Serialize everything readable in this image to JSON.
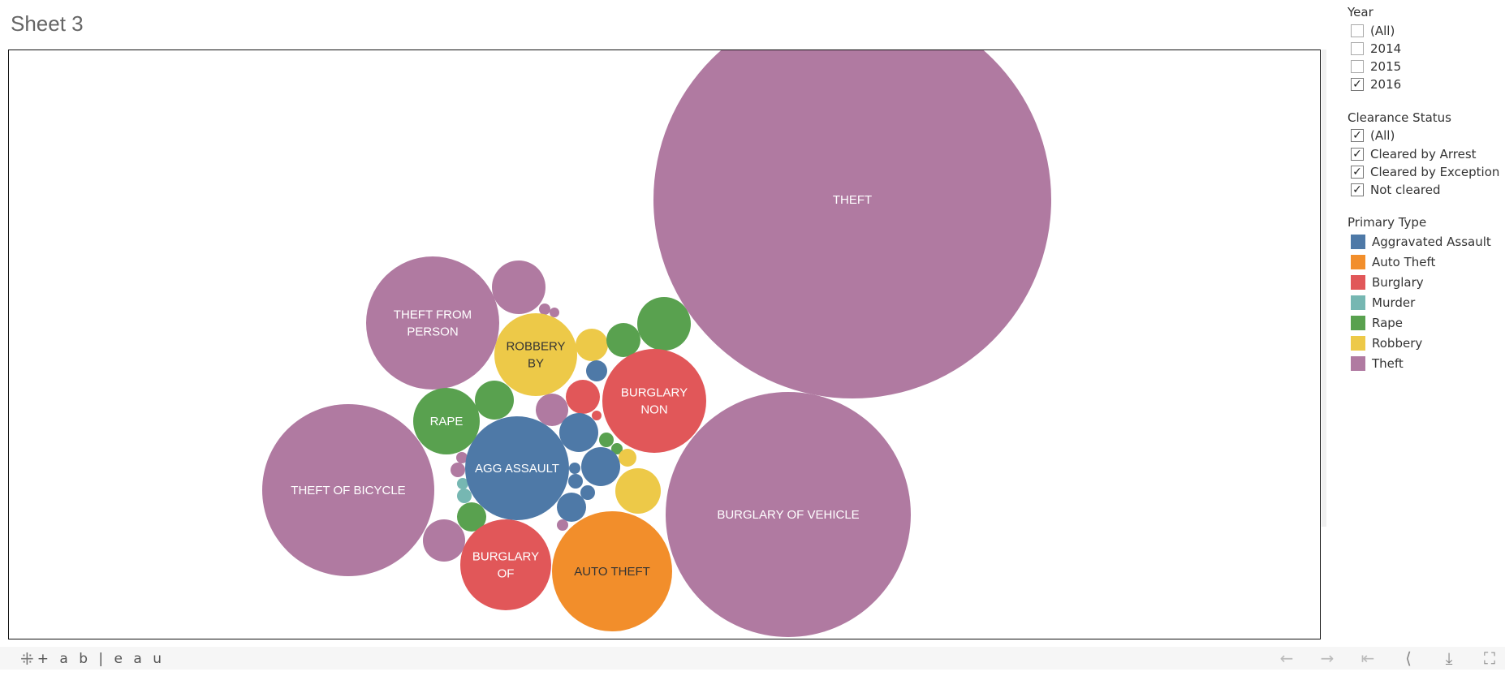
{
  "sheet_title": "Sheet 3",
  "filters": {
    "year": {
      "title": "Year",
      "options": [
        {
          "label": "(All)",
          "checked": false
        },
        {
          "label": "2014",
          "checked": false
        },
        {
          "label": "2015",
          "checked": false
        },
        {
          "label": "2016",
          "checked": true
        }
      ]
    },
    "clearance": {
      "title": "Clearance Status",
      "options": [
        {
          "label": "(All)",
          "checked": true
        },
        {
          "label": "Cleared by Arrest",
          "checked": true
        },
        {
          "label": "Cleared by Exception",
          "checked": true
        },
        {
          "label": "Not cleared",
          "checked": true
        }
      ]
    }
  },
  "legend": {
    "title": "Primary Type",
    "items": [
      {
        "label": "Aggravated Assault",
        "color": "#4e79a7"
      },
      {
        "label": "Auto Theft",
        "color": "#f28e2b"
      },
      {
        "label": "Burglary",
        "color": "#e15759"
      },
      {
        "label": "Murder",
        "color": "#76b7b2"
      },
      {
        "label": "Rape",
        "color": "#59a14f"
      },
      {
        "label": "Robbery",
        "color": "#edc948"
      },
      {
        "label": "Theft",
        "color": "#b07aa1"
      }
    ]
  },
  "chart_data": {
    "type": "packed-bubble",
    "bubbles": [
      {
        "type": "Theft",
        "label": [
          "THEFT"
        ]
      },
      {
        "type": "Theft",
        "label": [
          "BURGLARY OF VEHICLE"
        ]
      },
      {
        "type": "Theft",
        "label": [
          "THEFT OF BICYCLE"
        ]
      },
      {
        "type": "Theft",
        "label": [
          "THEFT FROM",
          "PERSON"
        ]
      },
      {
        "type": "Aggravated Assault",
        "label": [
          "AGG ASSAULT"
        ]
      },
      {
        "type": "Burglary",
        "label": [
          "BURGLARY",
          "NON"
        ]
      },
      {
        "type": "Robbery",
        "label": [
          "ROBBERY",
          "BY"
        ]
      },
      {
        "type": "Auto Theft",
        "label": [
          "AUTO THEFT"
        ]
      },
      {
        "type": "Burglary",
        "label": [
          "BURGLARY",
          "OF"
        ]
      },
      {
        "type": "Rape",
        "label": [
          "RAPE"
        ]
      }
    ]
  },
  "footer": {
    "logo_text": "+ a b | e a u"
  }
}
